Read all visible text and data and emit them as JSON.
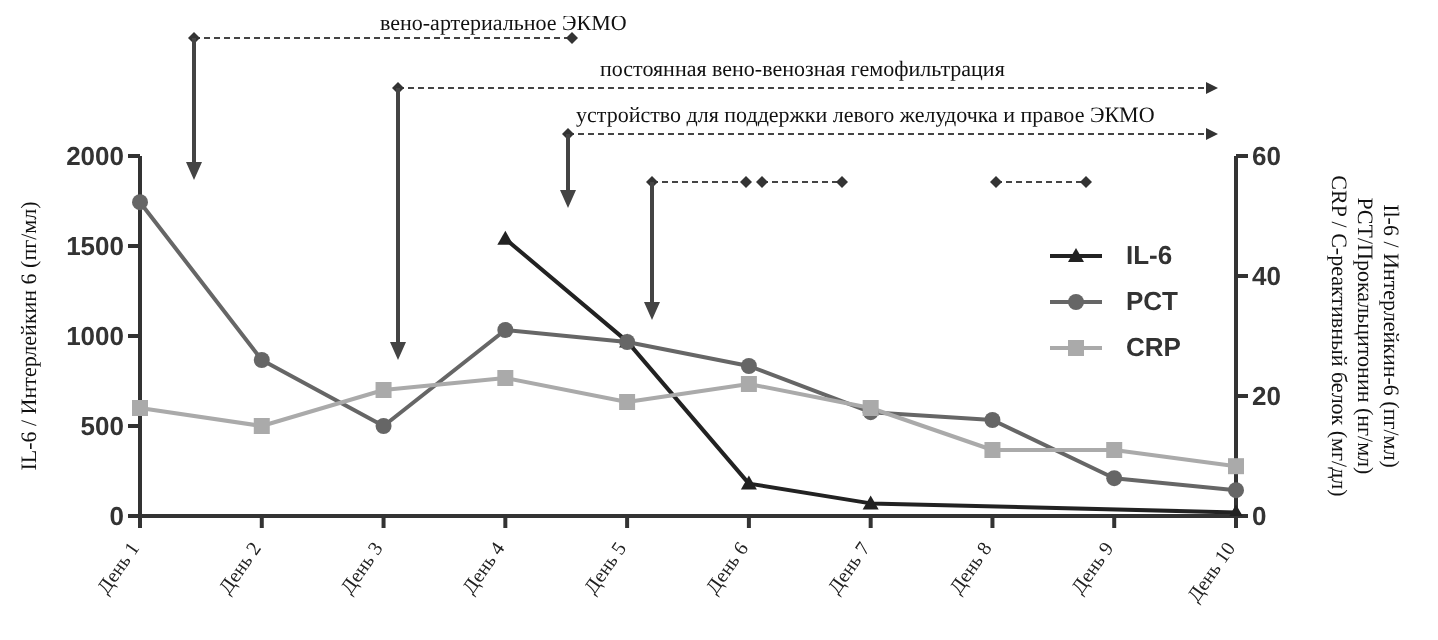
{
  "chart_data": {
    "type": "line",
    "ylabel": "IL-6 / Интерлейкин 6 (пг/мл)",
    "y2label": "Il-6 / Интерлейкин-6 (пг/мл)\nPCT/Прокальцитонин (нг/мл)\nCRP / С-реактивный белок (мг/дл)",
    "categories": [
      "День 1",
      "День 2",
      "День 3",
      "День 4",
      "День 5",
      "День 6",
      "День 7",
      "День 8",
      "День 9",
      "День 10"
    ],
    "series": [
      {
        "name": "IL-6",
        "color": "#222222",
        "marker": "triangle",
        "values": [
          null,
          null,
          null,
          1540,
          970,
          180,
          70,
          null,
          null,
          20
        ]
      },
      {
        "name": "PCT",
        "color": "#666666",
        "marker": "circle",
        "axis": "y2",
        "values": [
          52.3,
          26,
          15,
          31,
          29,
          25,
          17.3,
          16,
          6.3,
          4.3
        ]
      },
      {
        "name": "CRP",
        "color": "#aaaaaa",
        "marker": "square",
        "axis": "y2",
        "values": [
          18,
          15,
          21,
          23,
          19,
          22,
          18,
          11,
          11,
          8.3
        ]
      }
    ],
    "ylim": [
      0,
      2000
    ],
    "yticks": [
      0,
      500,
      1000,
      1500,
      2000
    ],
    "y2lim": [
      0,
      60
    ],
    "y2ticks": [
      0,
      20,
      40,
      60
    ],
    "annotations": [
      "вено-артериальное ЭКМО",
      "постоянная вено-венозная гемофильтрация",
      "устройство для поддержки левого желудочка и правое ЭКМО"
    ],
    "legend": "right"
  }
}
